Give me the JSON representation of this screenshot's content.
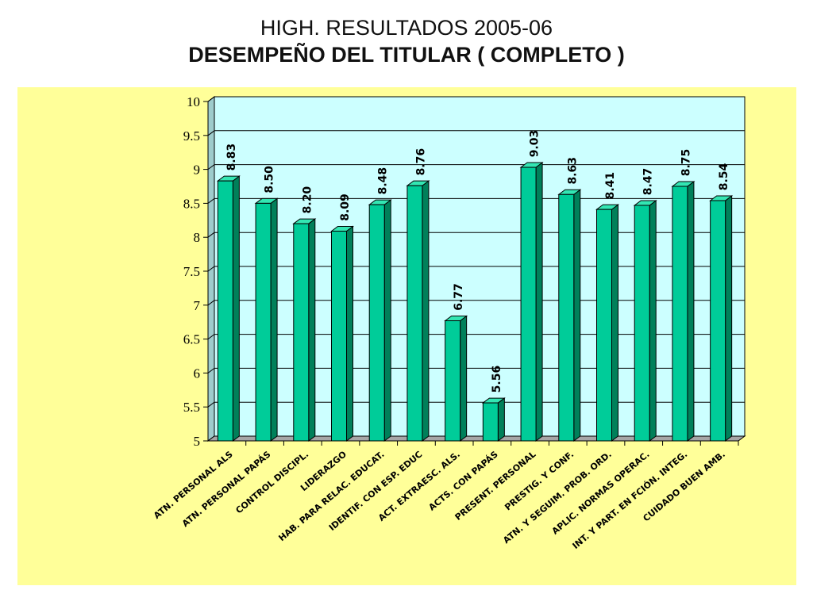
{
  "title": "HIGH. RESULTADOS 2005-06",
  "subtitle": "DESEMPEÑO DEL TITULAR ( COMPLETO )",
  "colors": {
    "panel_background": "#ffff99",
    "plot_background": "#ccffff",
    "bar_front": "#00cc99",
    "bar_side": "#00805a",
    "bar_top": "#33e6b3",
    "floor": "#a6a6a6"
  },
  "chart_data": {
    "type": "bar",
    "style": "3d",
    "title": "HIGH. RESULTADOS 2005-06",
    "subtitle": "DESEMPEÑO DEL TITULAR ( COMPLETO )",
    "xlabel": "",
    "ylabel": "",
    "ylim": [
      5,
      10
    ],
    "yticks": [
      "5",
      "5.5",
      "6",
      "6.5",
      "7",
      "7.5",
      "8",
      "8.5",
      "9",
      "9.5",
      "10"
    ],
    "grid": true,
    "legend": "none",
    "categories": [
      "ATN. PERSONAL ALS",
      "ATN. PERSONAL PAPÁS",
      "CONTROL DISCIPL.",
      "LIDERAZGO",
      "HAB. PARA RELAC. EDUCAT.",
      "IDENTIF. CON ESP. EDUC",
      "ACT. EXTRAESC. ALS.",
      "ACTS. CON PAPÁS",
      "PRESENT. PERSONAL",
      "PRESTIG. Y CONF.",
      "ATN. Y SEGUIM. PROB. ORD.",
      "APLIC. NORMAS OPERAC.",
      "INT. Y PART. EN FCIÓN. INTEG.",
      "CUIDADO BUEN AMB."
    ],
    "values": [
      8.83,
      8.5,
      8.2,
      8.09,
      8.48,
      8.76,
      6.77,
      5.56,
      9.03,
      8.63,
      8.41,
      8.47,
      8.75,
      8.54
    ],
    "value_labels": [
      "8.83",
      "8.50",
      "8.20",
      "8.09",
      "8.48",
      "8.76",
      "6.77",
      "5.56",
      "9.03",
      "8.63",
      "8.41",
      "8.47",
      "8.75",
      "8.54"
    ]
  }
}
